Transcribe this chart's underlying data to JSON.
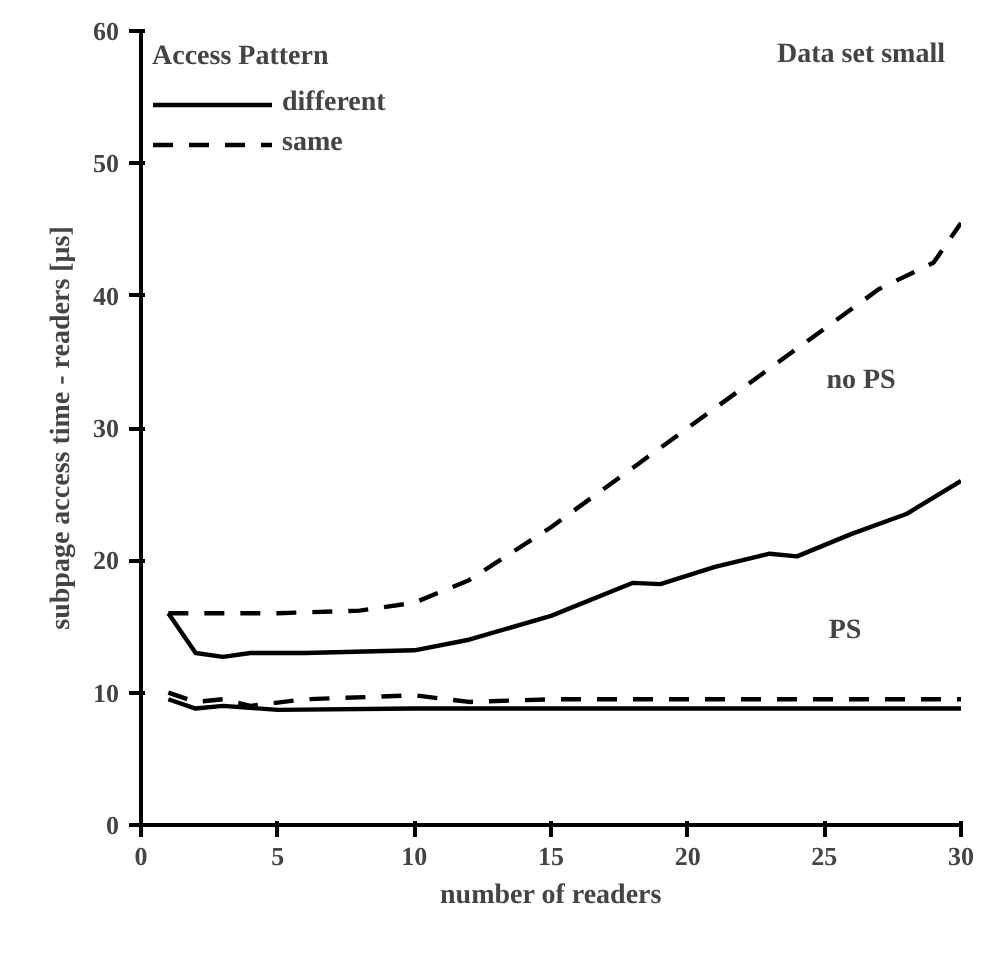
{
  "chart_data": {
    "type": "line",
    "xlabel": "number of readers",
    "ylabel": "subpage access time - readers [μs]",
    "legend_title": "Access Pattern",
    "legend": "top left",
    "grid": false,
    "marker": "none",
    "xlim": [
      0,
      30
    ],
    "ylim": [
      0,
      60
    ],
    "xticks": [
      0,
      5,
      10,
      15,
      20,
      25,
      30
    ],
    "yticks": [
      0,
      10,
      20,
      30,
      40,
      50,
      60
    ],
    "series": [
      {
        "name": "different",
        "color": "#000000",
        "line_style": "solid",
        "x": [
          1,
          2,
          3,
          4,
          6,
          10,
          12,
          15,
          18,
          19,
          21,
          23,
          24,
          26,
          28,
          30
        ],
        "values": [
          16,
          13,
          12.7,
          13,
          13,
          13.2,
          14,
          15.8,
          18.3,
          18.2,
          19.5,
          20.5,
          20.3,
          22,
          23.5,
          26
        ]
      },
      {
        "name": "same",
        "color": "#000000",
        "line_style": "dashed",
        "x": [
          1,
          3,
          5,
          8,
          10,
          12,
          15,
          18,
          20,
          22,
          24,
          25,
          27,
          29,
          30
        ],
        "values": [
          16,
          16,
          16,
          16.2,
          16.8,
          18.5,
          22.5,
          27,
          30,
          33,
          36,
          37.5,
          40.5,
          42.5,
          45.5
        ]
      },
      {
        "color": "#000000",
        "line_style": "solid",
        "x": [
          1,
          2,
          3,
          5,
          10,
          20,
          30
        ],
        "values": [
          9.5,
          8.8,
          9,
          8.7,
          8.8,
          8.8,
          8.8
        ]
      },
      {
        "color": "#000000",
        "line_style": "dashed",
        "x": [
          1,
          2,
          3,
          4,
          6,
          10,
          12,
          15,
          20,
          25,
          30
        ],
        "values": [
          10,
          9.3,
          9.5,
          9,
          9.5,
          9.8,
          9.3,
          9.5,
          9.5,
          9.5,
          9.5
        ]
      }
    ],
    "annotations": [
      "Data set small",
      "no PS",
      "PS"
    ]
  }
}
